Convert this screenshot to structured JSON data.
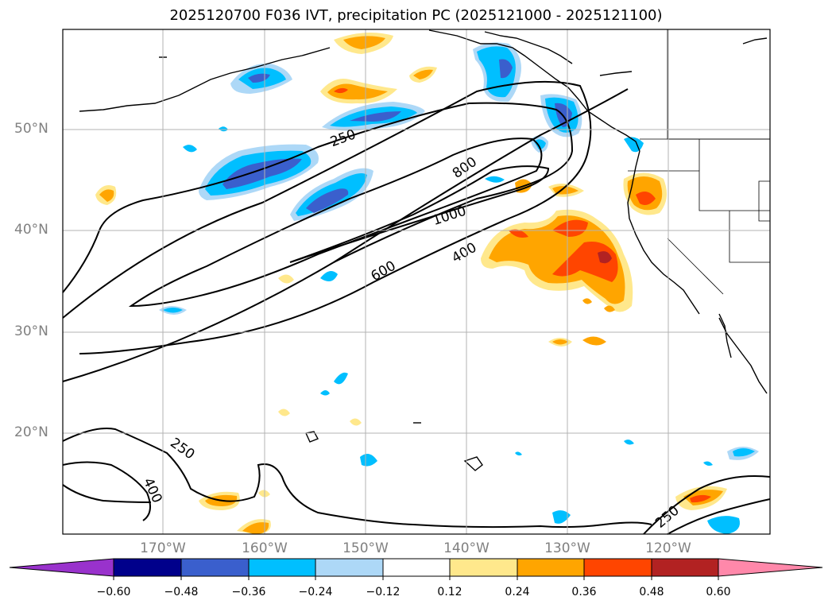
{
  "title": "2025120700 F036 IVT, precipitation PC (2025121000 - 2025121100)",
  "map": {
    "lat_labels": [
      "50°N",
      "40°N",
      "30°N",
      "20°N"
    ],
    "lon_labels": [
      "170°W",
      "160°W",
      "150°W",
      "140°W",
      "130°W",
      "120°W"
    ],
    "ivt_contour_labels": [
      "250",
      "800",
      "1000",
      "400",
      "600",
      "250",
      "400",
      "250"
    ]
  },
  "colorbar": {
    "ticks": [
      "−0.60",
      "−0.48",
      "−0.36",
      "−0.24",
      "−0.12",
      "0.12",
      "0.24",
      "0.36",
      "0.48",
      "0.60"
    ],
    "colors": {
      "extend_low": "#9932cc",
      "bin_1": "#00008b",
      "bin_2": "#3a5fcd",
      "bin_3": "#00bfff",
      "bin_4": "#add8f7",
      "bin_5": "#ffffff",
      "bin_6": "#ffe88c",
      "bin_7": "#ffa500",
      "bin_8": "#ff4500",
      "bin_9": "#b22222",
      "extend_high": "#ff88aa"
    }
  }
}
